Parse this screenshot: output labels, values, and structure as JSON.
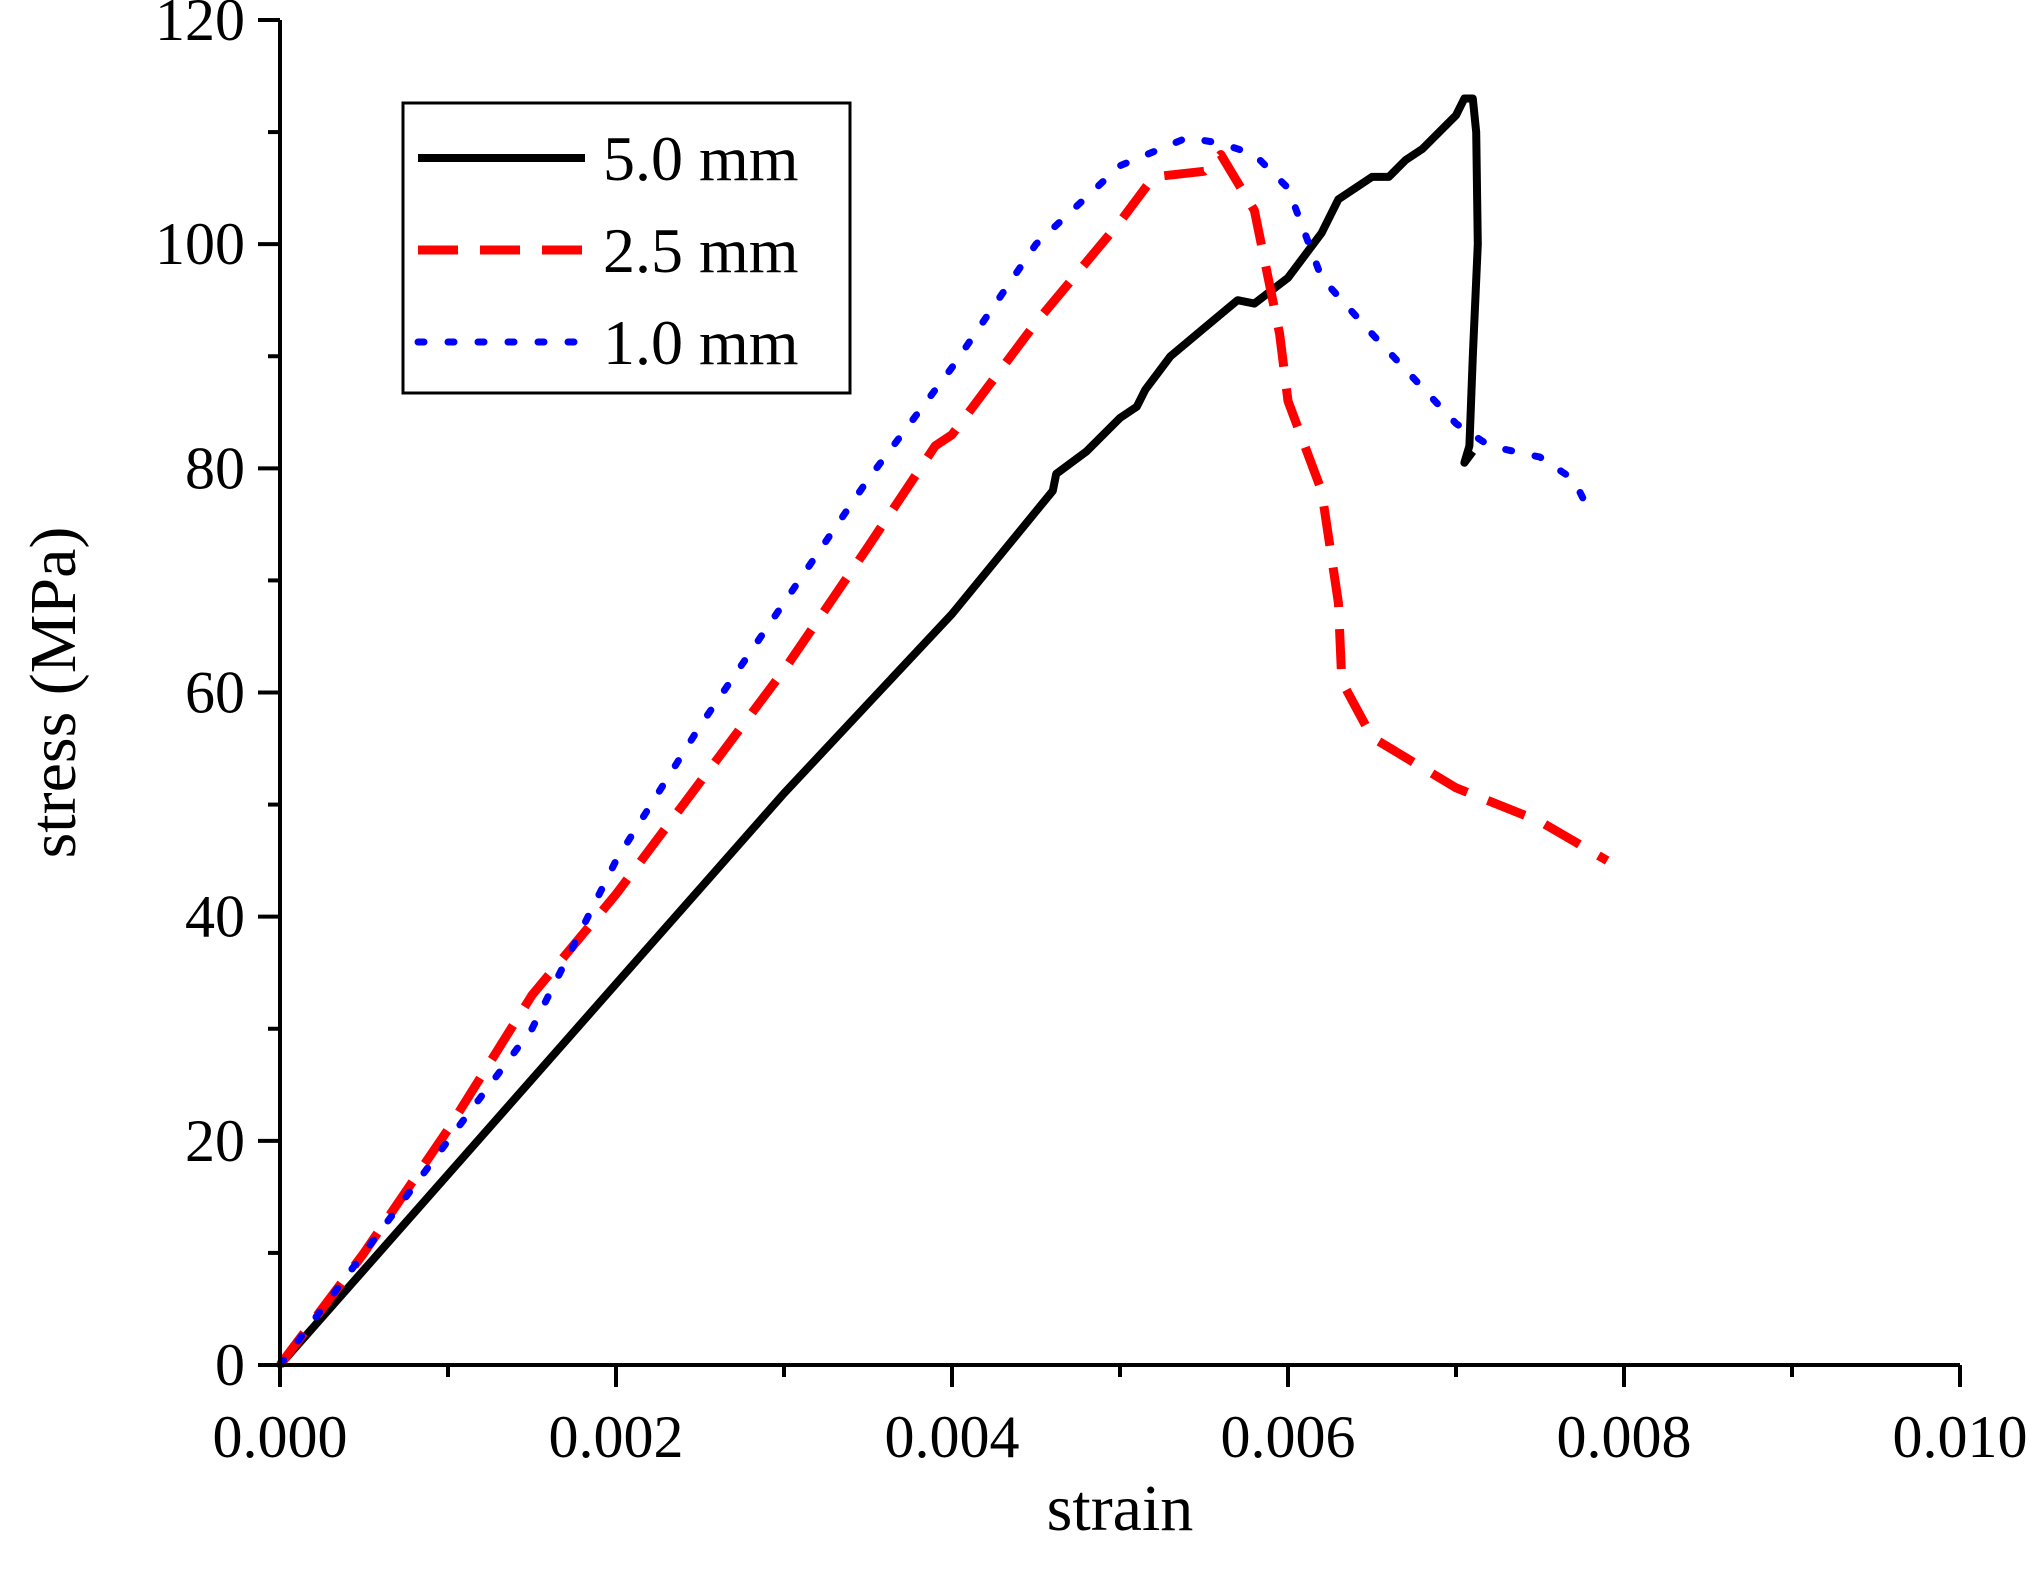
{
  "chart_data": {
    "type": "line",
    "title": "",
    "xlabel": "strain",
    "ylabel": "stress (MPa)",
    "xlim": [
      0,
      0.01
    ],
    "ylim": [
      0,
      120
    ],
    "xticks": [
      0,
      0.002,
      0.004,
      0.006,
      0.008,
      0.01
    ],
    "xtick_labels": [
      "0.000",
      "0.002",
      "0.004",
      "0.006",
      "0.008",
      "0.010"
    ],
    "xminor": [
      0.001,
      0.003,
      0.005,
      0.007,
      0.009
    ],
    "yticks": [
      0,
      20,
      40,
      60,
      80,
      100,
      120
    ],
    "ytick_labels": [
      "0",
      "20",
      "40",
      "60",
      "80",
      "100",
      "120"
    ],
    "yminor": [
      10,
      30,
      50,
      70,
      90,
      110
    ],
    "grid": false,
    "legend_position": "top-left",
    "series": [
      {
        "name": "5.0 mm",
        "color": "#000000",
        "style": "solid",
        "x": [
          0,
          0.001,
          0.002,
          0.003,
          0.004,
          0.0046,
          0.00462,
          0.0048,
          0.005,
          0.0051,
          0.00515,
          0.0053,
          0.0055,
          0.0057,
          0.0058,
          0.006,
          0.0062,
          0.0063,
          0.0065,
          0.0066,
          0.0067,
          0.0068,
          0.007,
          0.00705,
          0.0071,
          0.00712,
          0.00713,
          0.0071,
          0.00708,
          0.00705,
          0.0071
        ],
        "y": [
          0,
          17,
          34,
          51,
          67,
          78,
          79.5,
          81.5,
          84.5,
          85.5,
          87,
          90,
          92.5,
          95,
          94.7,
          97,
          101,
          104,
          106,
          106,
          107.5,
          108.5,
          111.5,
          113,
          113,
          110,
          100,
          90,
          82,
          80.5,
          81.5
        ]
      },
      {
        "name": "2.5 mm",
        "color": "#ff0000",
        "style": "dashed",
        "x": [
          0,
          0.0005,
          0.001,
          0.0015,
          0.002,
          0.0025,
          0.003,
          0.0035,
          0.0039,
          0.004,
          0.0045,
          0.005,
          0.0052,
          0.0055,
          0.0056,
          0.0058,
          0.00595,
          0.006,
          0.0062,
          0.0063,
          0.00632,
          0.0065,
          0.007,
          0.0075,
          0.0079
        ],
        "y": [
          0,
          10,
          21,
          33,
          42,
          52,
          62,
          73,
          82,
          83,
          93,
          102,
          106,
          106.5,
          108,
          103,
          92,
          86,
          78,
          68,
          61,
          56,
          51.5,
          48.5,
          45
        ]
      },
      {
        "name": "1.0 mm",
        "color": "#0000ff",
        "style": "dotted",
        "x": [
          0,
          0.0005,
          0.001,
          0.0015,
          0.002,
          0.0025,
          0.003,
          0.0035,
          0.004,
          0.0045,
          0.005,
          0.0054,
          0.0056,
          0.0058,
          0.006,
          0.0062,
          0.0065,
          0.007,
          0.0072,
          0.0075,
          0.0077,
          0.0078
        ],
        "y": [
          0,
          10,
          20,
          30,
          45,
          57,
          68,
          79,
          89,
          100,
          107,
          109.5,
          109,
          108,
          105,
          97,
          92,
          84,
          82,
          81,
          79,
          76
        ]
      }
    ]
  }
}
